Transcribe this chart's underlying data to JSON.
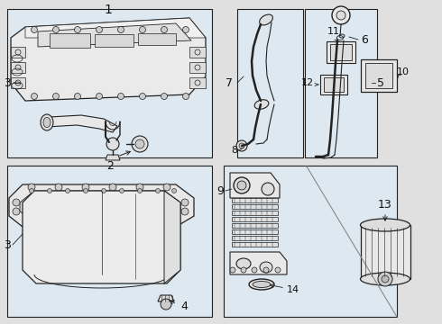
{
  "bg_color": "#e0e0e0",
  "box_fill": "#dde8f0",
  "box_edge": "#444444",
  "lc": "#222222",
  "label_fs": 9,
  "label_color": "#111111",
  "fig_w": 4.9,
  "fig_h": 3.6,
  "dpi": 100
}
